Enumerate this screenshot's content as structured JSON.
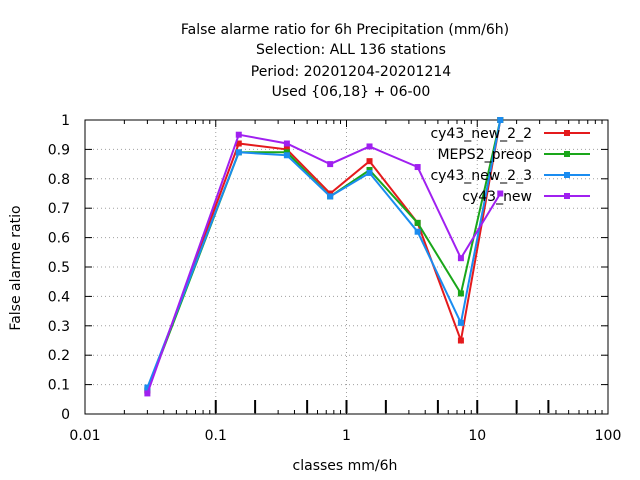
{
  "chart_data": {
    "type": "line",
    "title_lines": [
      "False alarme ratio  for 6h Precipitation (mm/6h)",
      "Selection: ALL    136 stations",
      "Period: 20201204-20201214",
      "Used {06,18} + 06-00"
    ],
    "xlabel": "classes mm/6h",
    "ylabel": "False alarme ratio",
    "x_scale": "log",
    "xlim": [
      0.01,
      100
    ],
    "ylim": [
      0,
      1
    ],
    "x_ticks": [
      "0.01",
      "0.1",
      "1",
      "10",
      "100"
    ],
    "y_ticks": [
      "0",
      "0.1",
      "0.2",
      "0.3",
      "0.4",
      "0.5",
      "0.6",
      "0.7",
      "0.8",
      "0.9",
      "1"
    ],
    "grid": true,
    "legend_position": "top-right",
    "class_markers": [
      0.1,
      0.2,
      0.5,
      1,
      2,
      5,
      10,
      20,
      35
    ],
    "series": [
      {
        "name": "cy43_new_2_2",
        "color": "#e41a1c",
        "points": [
          [
            0.03,
            0.08
          ],
          [
            0.15,
            0.92
          ],
          [
            0.35,
            0.9
          ],
          [
            0.75,
            0.75
          ],
          [
            1.5,
            0.86
          ],
          [
            3.5,
            0.65
          ],
          [
            7.5,
            0.25
          ],
          [
            15,
            1.0
          ]
        ]
      },
      {
        "name": "MEPS2_preop",
        "color": "#1aa61a",
        "points": [
          [
            0.03,
            0.08
          ],
          [
            0.15,
            0.89
          ],
          [
            0.35,
            0.89
          ],
          [
            0.75,
            0.74
          ],
          [
            1.5,
            0.83
          ],
          [
            3.5,
            0.65
          ],
          [
            7.5,
            0.41
          ],
          [
            15,
            1.0
          ]
        ]
      },
      {
        "name": "cy43_new_2_3",
        "color": "#1a8cf0",
        "points": [
          [
            0.03,
            0.09
          ],
          [
            0.15,
            0.89
          ],
          [
            0.35,
            0.88
          ],
          [
            0.75,
            0.74
          ],
          [
            1.5,
            0.82
          ],
          [
            3.5,
            0.62
          ],
          [
            7.5,
            0.31
          ],
          [
            15,
            1.0
          ]
        ]
      },
      {
        "name": "cy43_new",
        "color": "#a020f0",
        "points": [
          [
            0.03,
            0.07
          ],
          [
            0.15,
            0.95
          ],
          [
            0.35,
            0.92
          ],
          [
            0.75,
            0.85
          ],
          [
            1.5,
            0.91
          ],
          [
            3.5,
            0.84
          ],
          [
            7.5,
            0.53
          ],
          [
            15,
            0.75
          ]
        ]
      }
    ]
  }
}
